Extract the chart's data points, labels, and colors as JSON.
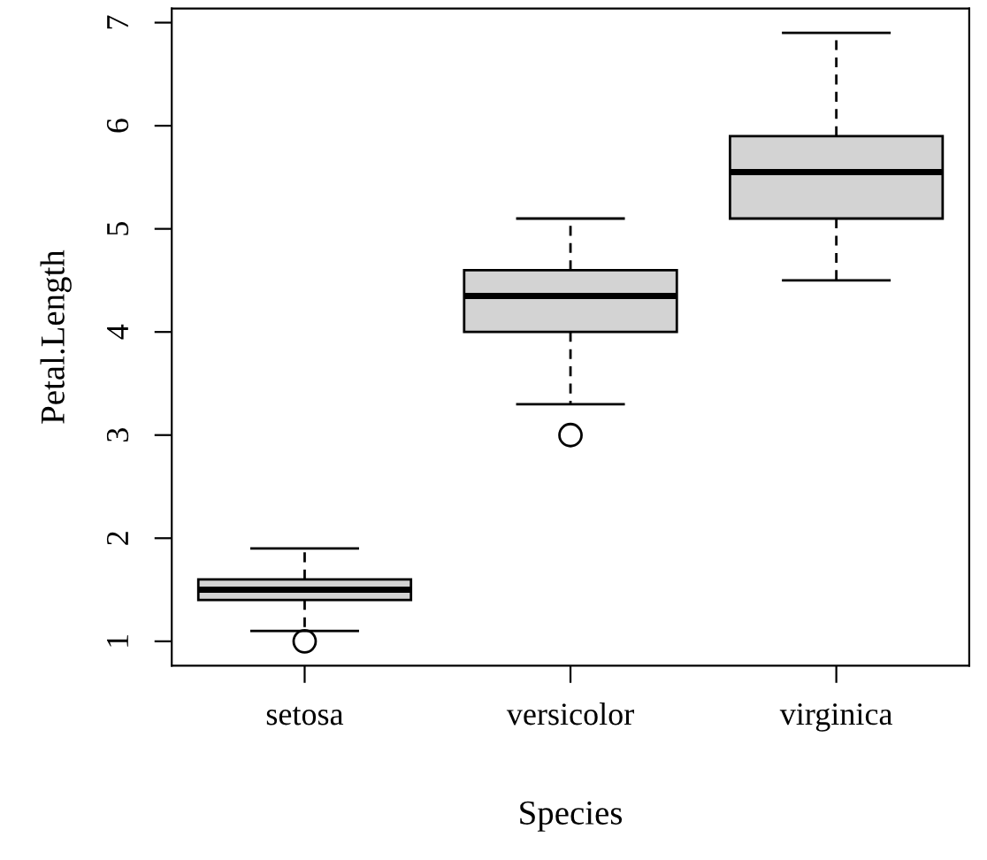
{
  "chart_data": {
    "type": "box",
    "xlabel": "Species",
    "ylabel": "Petal.Length",
    "categories": [
      "setosa",
      "versicolor",
      "virginica"
    ],
    "boxes": [
      {
        "low": 1.1,
        "q1": 1.4,
        "median": 1.5,
        "q3": 1.6,
        "high": 1.9,
        "outliers": [
          1.0
        ]
      },
      {
        "low": 3.3,
        "q1": 4.0,
        "median": 4.35,
        "q3": 4.6,
        "high": 5.1,
        "outliers": [
          3.0
        ]
      },
      {
        "low": 4.5,
        "q1": 5.1,
        "median": 5.55,
        "q3": 5.9,
        "high": 6.9
      }
    ],
    "color": "#d3d3d3",
    "ylim": [
      0.764,
      7.136
    ],
    "yticks": [
      1,
      2,
      3,
      4,
      5,
      6,
      7
    ],
    "grid": false,
    "line_style": "dashed"
  }
}
